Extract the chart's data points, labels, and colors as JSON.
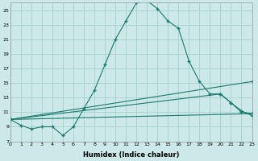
{
  "xlabel": "Humidex (Indice chaleur)",
  "bg_color": "#cce8e8",
  "grid_color": "#aad4d4",
  "line_color": "#1a7a6e",
  "x_min": 0,
  "x_max": 23,
  "y_min": 7,
  "y_max": 26,
  "yticks": [
    7,
    9,
    11,
    13,
    15,
    17,
    19,
    21,
    23,
    25
  ],
  "xticks": [
    0,
    1,
    2,
    3,
    4,
    5,
    6,
    7,
    8,
    9,
    10,
    11,
    12,
    13,
    14,
    15,
    16,
    17,
    18,
    19,
    20,
    21,
    22,
    23
  ],
  "lines": [
    {
      "x": [
        0,
        1,
        2,
        3,
        4,
        5,
        6,
        7,
        8,
        9,
        10,
        11,
        12,
        13,
        14,
        15,
        16,
        17,
        18,
        19,
        20,
        21,
        22,
        23
      ],
      "y": [
        10.0,
        9.2,
        8.7,
        9.0,
        9.0,
        7.8,
        9.0,
        11.5,
        14.0,
        17.5,
        21.0,
        23.5,
        26.0,
        26.3,
        25.2,
        23.5,
        22.5,
        18.0,
        15.2,
        13.5,
        13.5,
        12.3,
        11.2,
        10.5
      ]
    },
    {
      "x": [
        0,
        23
      ],
      "y": [
        10.0,
        15.2
      ]
    },
    {
      "x": [
        0,
        20,
        21,
        22,
        23
      ],
      "y": [
        10.0,
        13.5,
        12.3,
        11.0,
        10.8
      ]
    },
    {
      "x": [
        0,
        23
      ],
      "y": [
        10.0,
        10.8
      ]
    }
  ]
}
